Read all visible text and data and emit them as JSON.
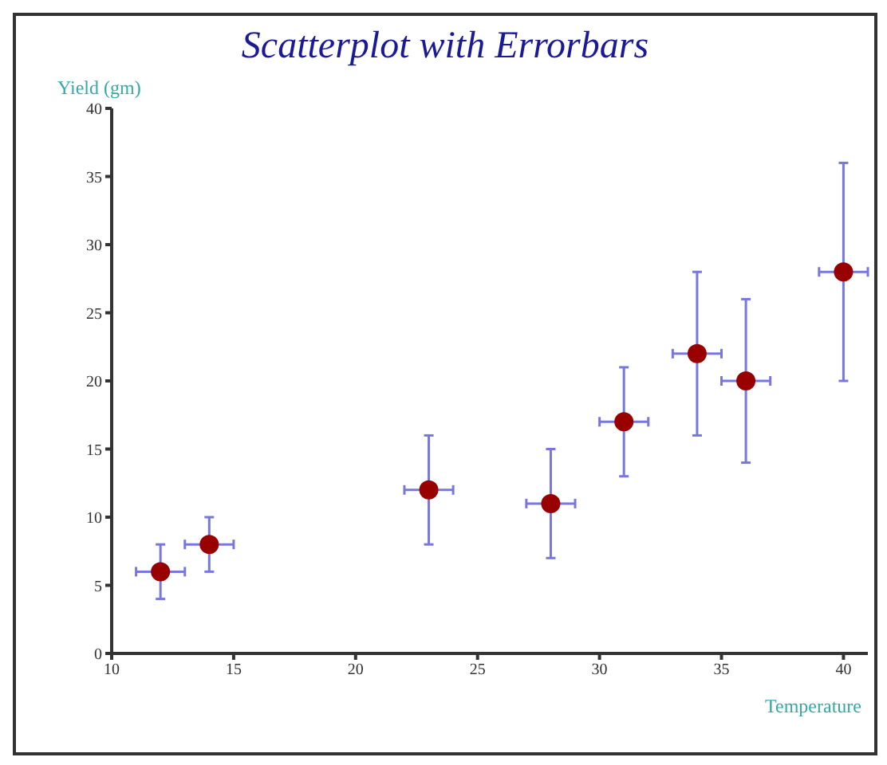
{
  "chart_data": {
    "type": "scatter",
    "title": "Scatterplot with Errorbars",
    "xlabel": "Temperature",
    "ylabel": "Yield (gm)",
    "x": [
      12,
      14,
      23,
      28,
      31,
      34,
      36,
      40
    ],
    "series": [
      {
        "color": "#990000",
        "values": [
          6,
          8,
          12,
          11,
          17,
          22,
          20,
          28
        ],
        "errors": [
          2,
          2,
          4,
          4,
          4,
          6,
          6,
          8
        ],
        "xerrors": [
          1,
          1,
          1,
          1,
          1,
          1,
          1,
          1
        ]
      }
    ],
    "xlim": [
      10,
      41
    ],
    "xticks": [
      10,
      15,
      20,
      25,
      30,
      35,
      40
    ],
    "ylim": [
      0,
      40
    ],
    "yticks": [
      0,
      5,
      10,
      15,
      20,
      25,
      30,
      35,
      40
    ],
    "grid": false,
    "marker": "circle"
  }
}
